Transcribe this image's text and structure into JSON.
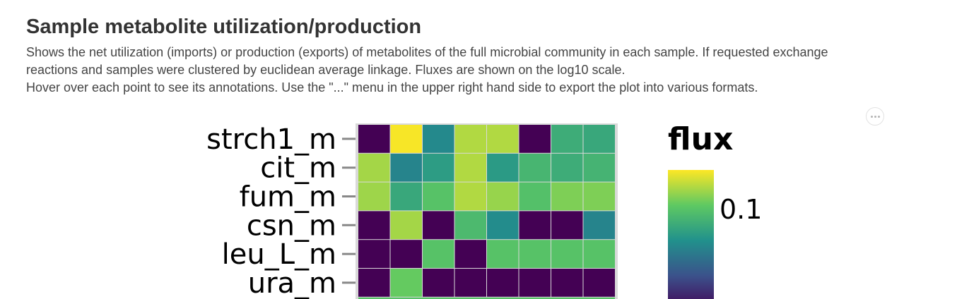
{
  "header": {
    "title": "Sample metabolite utilization/production",
    "description_lines": [
      "Shows the net utilization (imports) or production (exports) of metabolites of the full microbial community in each sample. If requested exchange",
      "reactions and samples were clustered by euclidean average linkage. Fluxes are shown on the log10 scale.",
      "Hover over each point to see its annotations. Use the \"...\" menu in the upper right hand side to export the plot into various formats."
    ]
  },
  "menu": {
    "icon": "ellipsis-icon"
  },
  "chart_data": {
    "type": "heatmap",
    "scale": "log10",
    "colormap": "viridis",
    "colormap_stops": [
      "#440154",
      "#3b528b",
      "#21918c",
      "#5ec962",
      "#fde725"
    ],
    "legend": {
      "title": "flux",
      "tick_labels": [
        "0.1"
      ],
      "tick_values": [
        0.1
      ],
      "placement": "right"
    },
    "rows": [
      "strch1_m",
      "cit_m",
      "fum_m",
      "csn_m",
      "leu_L_m",
      "ura_m"
    ],
    "values": [
      [
        0.0,
        0.99,
        0.47,
        0.88,
        0.88,
        0.0,
        0.62,
        0.6
      ],
      [
        0.86,
        0.45,
        0.55,
        0.88,
        0.54,
        0.66,
        0.62,
        0.65
      ],
      [
        0.85,
        0.6,
        0.72,
        0.88,
        0.84,
        0.71,
        0.8,
        0.8
      ],
      [
        0.0,
        0.86,
        0.0,
        0.68,
        0.48,
        0.0,
        0.0,
        0.45
      ],
      [
        0.0,
        0.0,
        0.72,
        0.0,
        0.72,
        0.72,
        0.72,
        0.72
      ],
      [
        0.0,
        0.76,
        0.0,
        0.0,
        0.0,
        0.0,
        0.0,
        0.0
      ]
    ],
    "colorbar_range": [
      0.0,
      1.0
    ],
    "colorbar_visible_range": [
      0.0,
      0.72
    ]
  }
}
